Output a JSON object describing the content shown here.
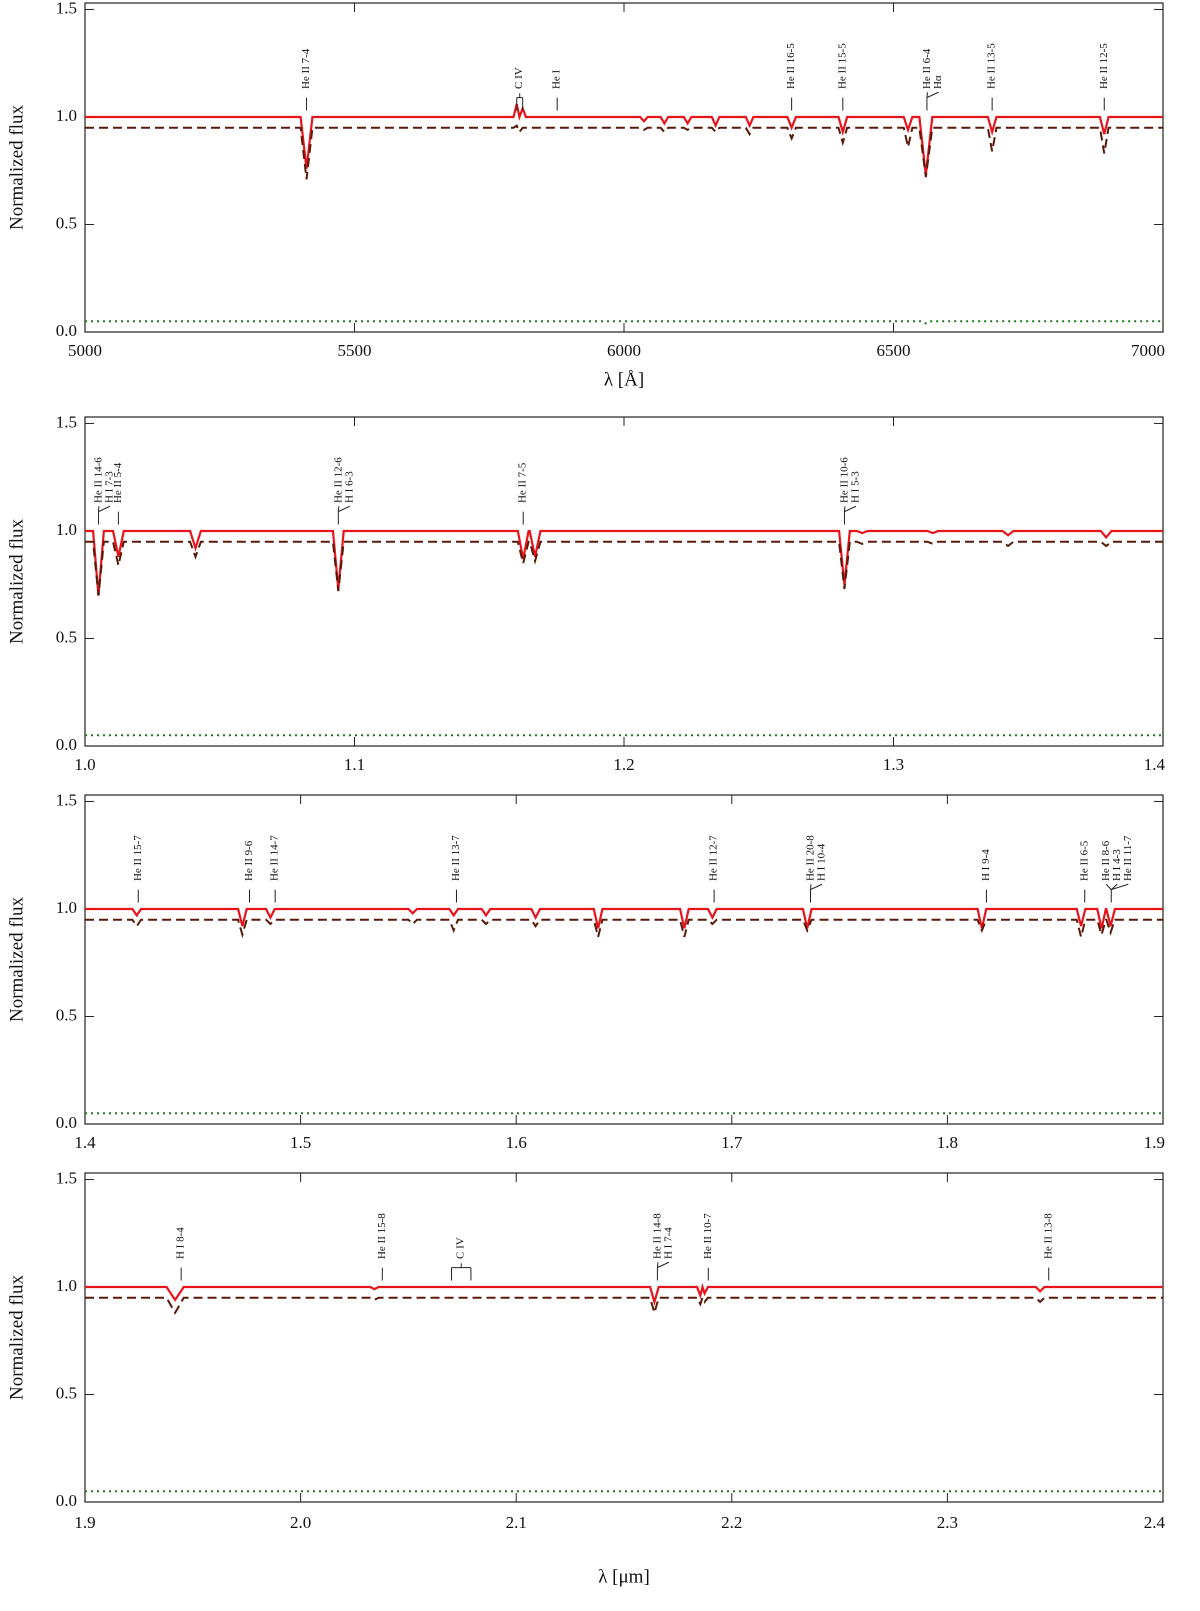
{
  "chart_data": [
    {
      "type": "line",
      "xlabel": "λ [Å]",
      "ylabel": "Normalized flux",
      "xlim": [
        5000,
        7000
      ],
      "ylim": [
        0,
        1.53
      ],
      "xticks": [
        5000,
        5500,
        6000,
        6500,
        7000
      ],
      "yticks": [
        {
          "value": 0,
          "label": "0.0"
        },
        0.5,
        {
          "value": 1,
          "label": "1.0"
        },
        1.5
      ],
      "series": [
        {
          "color": "#e8141c",
          "style": "solid",
          "x": [
            5000,
            5400,
            5411,
            5422,
            5795,
            5801,
            5806,
            5812,
            5818,
            6030,
            6037,
            6044,
            6068,
            6075,
            6082,
            6111,
            6118,
            6125,
            6163,
            6170,
            6177,
            6226,
            6233,
            6240,
            6303,
            6311,
            6319,
            6398,
            6406,
            6414,
            6519,
            6527,
            6535,
            6548,
            6560,
            6572,
            6675,
            6683,
            6691,
            6883,
            6891,
            6899,
            7000
          ],
          "values": [
            1,
            1,
            0.76,
            1,
            1,
            1.06,
            1,
            1.04,
            1,
            1,
            0.98,
            1,
            1,
            0.97,
            1,
            1,
            0.97,
            1,
            1,
            0.96,
            1,
            1,
            0.96,
            1,
            1,
            0.95,
            1,
            1,
            0.93,
            1,
            1,
            0.94,
            1,
            1,
            0.73,
            1,
            1,
            0.93,
            1,
            1,
            0.92,
            1,
            1
          ]
        },
        {
          "color": "#5a1a0a",
          "style": "dashed",
          "x": [
            5000,
            5400,
            5411,
            5422,
            5795,
            5801,
            5806,
            5812,
            5818,
            6030,
            6037,
            6044,
            6068,
            6075,
            6082,
            6111,
            6118,
            6125,
            6163,
            6170,
            6177,
            6226,
            6233,
            6240,
            6303,
            6311,
            6319,
            6398,
            6406,
            6414,
            6519,
            6527,
            6535,
            6548,
            6560,
            6572,
            6675,
            6683,
            6691,
            6883,
            6891,
            6899,
            7000
          ],
          "values": [
            0.95,
            0.95,
            0.71,
            0.95,
            0.95,
            0.96,
            0.93,
            0.95,
            0.95,
            0.95,
            0.94,
            0.95,
            0.95,
            0.93,
            0.95,
            0.95,
            0.94,
            0.95,
            0.95,
            0.93,
            0.95,
            0.95,
            0.92,
            0.95,
            0.95,
            0.9,
            0.95,
            0.95,
            0.88,
            0.95,
            0.95,
            0.86,
            0.95,
            0.95,
            0.72,
            0.95,
            0.95,
            0.84,
            0.95,
            0.95,
            0.83,
            0.95,
            0.95
          ]
        },
        {
          "color": "#1a7a1a",
          "style": "dotted",
          "x": [
            5000,
            6550,
            6560,
            6570,
            7000
          ],
          "values": [
            0.05,
            0.05,
            0.04,
            0.05,
            0.05
          ]
        }
      ],
      "annotations": [
        {
          "labels": [
            "He II 7-4"
          ],
          "x": 5411
        },
        {
          "labels": [
            "C IV"
          ],
          "x": [
            5801,
            5812
          ]
        },
        {
          "labels": [
            "He I"
          ],
          "x": 5876
        },
        {
          "labels": [
            "He II 16-5"
          ],
          "x": 6311
        },
        {
          "labels": [
            "He II 15-5"
          ],
          "x": 6406
        },
        {
          "labels": [
            "He II 6-4",
            "Hα"
          ],
          "x": 6562
        },
        {
          "labels": [
            "He II 13-5"
          ],
          "x": 6683
        },
        {
          "labels": [
            "He II 12-5"
          ],
          "x": 6891
        }
      ]
    },
    {
      "type": "line",
      "ylabel": "Normalized flux",
      "xlim": [
        1.0,
        1.4
      ],
      "ylim": [
        0,
        1.53
      ],
      "xticks": [
        {
          "value": 1,
          "label": "1.0"
        },
        1.1,
        1.2,
        1.3,
        1.4
      ],
      "yticks": [
        {
          "value": 0,
          "label": "0.0"
        },
        0.5,
        {
          "value": 1,
          "label": "1.0"
        },
        1.5
      ],
      "series": [
        {
          "color": "#e8141c",
          "style": "solid",
          "x": [
            1.0,
            1.003,
            1.005,
            1.007,
            1.0104,
            1.0124,
            1.0144,
            1.039,
            1.041,
            1.043,
            1.092,
            1.094,
            1.096,
            1.1606,
            1.1626,
            1.1646,
            1.165,
            1.167,
            1.169,
            1.2798,
            1.2818,
            1.2838,
            1.2864,
            1.2884,
            1.2904,
            1.3126,
            1.3146,
            1.3166,
            1.3405,
            1.3425,
            1.3445,
            1.3769,
            1.3789,
            1.3809,
            1.4
          ],
          "values": [
            1,
            1,
            0.7,
            1,
            1,
            0.88,
            1,
            1,
            0.92,
            1,
            1,
            0.73,
            1,
            1,
            0.87,
            1,
            1,
            0.88,
            1,
            1,
            0.75,
            1,
            1,
            0.99,
            1,
            1,
            0.99,
            1,
            1,
            0.98,
            1,
            1,
            0.97,
            1,
            1
          ]
        },
        {
          "color": "#5a1a0a",
          "style": "dashed",
          "x": [
            1.0,
            1.003,
            1.005,
            1.007,
            1.0104,
            1.0124,
            1.0144,
            1.039,
            1.041,
            1.043,
            1.092,
            1.094,
            1.096,
            1.1606,
            1.1626,
            1.1646,
            1.165,
            1.167,
            1.169,
            1.2798,
            1.2818,
            1.2838,
            1.2864,
            1.2884,
            1.2904,
            1.3126,
            1.3146,
            1.3166,
            1.3405,
            1.3425,
            1.3445,
            1.3769,
            1.3789,
            1.3809,
            1.4
          ],
          "values": [
            0.95,
            0.95,
            0.7,
            0.95,
            0.95,
            0.84,
            0.95,
            0.95,
            0.88,
            0.95,
            0.95,
            0.72,
            0.95,
            0.95,
            0.85,
            0.95,
            0.95,
            0.86,
            0.95,
            0.95,
            0.73,
            0.95,
            0.95,
            0.94,
            0.95,
            0.95,
            0.94,
            0.95,
            0.95,
            0.93,
            0.95,
            0.95,
            0.93,
            0.95,
            0.95
          ]
        },
        {
          "color": "#1a7a1a",
          "style": "dotted",
          "x": [
            1.0,
            1.4
          ],
          "values": [
            0.05,
            0.05
          ]
        }
      ],
      "annotations": [
        {
          "labels": [
            "He II 14-6",
            "H I 7-3"
          ],
          "x": 1.005
        },
        {
          "labels": [
            "He II 5-4"
          ],
          "x": 1.0124
        },
        {
          "labels": [
            "He II 12-6",
            "H I 6-3"
          ],
          "x": 1.094
        },
        {
          "labels": [
            "He II 7-5"
          ],
          "x": 1.1626
        },
        {
          "labels": [
            "He II 10-6",
            "H I 5-3"
          ],
          "x": 1.2818
        }
      ]
    },
    {
      "type": "line",
      "ylabel": "Normalized flux",
      "xlim": [
        1.4,
        1.9
      ],
      "ylim": [
        0,
        1.53
      ],
      "xticks": [
        1.4,
        1.5,
        1.6,
        1.7,
        1.8,
        1.9
      ],
      "yticks": [
        {
          "value": 0,
          "label": "0.0"
        },
        0.5,
        {
          "value": 1,
          "label": "1.0"
        },
        1.5
      ],
      "series": [
        {
          "color": "#e8141c",
          "style": "solid",
          "x": [
            1.4,
            1.422,
            1.424,
            1.426,
            1.471,
            1.473,
            1.475,
            1.484,
            1.486,
            1.488,
            1.55,
            1.552,
            1.554,
            1.569,
            1.571,
            1.573,
            1.584,
            1.586,
            1.588,
            1.607,
            1.609,
            1.611,
            1.636,
            1.638,
            1.64,
            1.676,
            1.678,
            1.68,
            1.689,
            1.691,
            1.693,
            1.733,
            1.735,
            1.737,
            1.814,
            1.816,
            1.818,
            1.86,
            1.862,
            1.864,
            1.8695,
            1.8715,
            1.8735,
            1.8737,
            1.8757,
            1.8777,
            1.9
          ],
          "values": [
            1,
            1,
            0.97,
            1,
            1,
            0.92,
            1,
            1,
            0.96,
            1,
            1,
            0.98,
            1,
            1,
            0.97,
            1,
            1,
            0.97,
            1,
            1,
            0.96,
            1,
            1,
            0.91,
            1,
            1,
            0.91,
            1,
            1,
            0.96,
            1,
            1,
            0.91,
            1,
            1,
            0.91,
            1,
            1,
            0.92,
            1,
            1,
            0.91,
            1,
            1,
            0.92,
            1,
            1
          ]
        },
        {
          "color": "#5a1a0a",
          "style": "dashed",
          "x": [
            1.4,
            1.422,
            1.424,
            1.426,
            1.471,
            1.473,
            1.475,
            1.484,
            1.486,
            1.488,
            1.55,
            1.552,
            1.554,
            1.569,
            1.571,
            1.573,
            1.584,
            1.586,
            1.588,
            1.607,
            1.609,
            1.611,
            1.636,
            1.638,
            1.64,
            1.676,
            1.678,
            1.68,
            1.689,
            1.691,
            1.693,
            1.733,
            1.735,
            1.737,
            1.814,
            1.816,
            1.818,
            1.86,
            1.862,
            1.864,
            1.8695,
            1.8715,
            1.8735,
            1.8737,
            1.8757,
            1.8777,
            1.9
          ],
          "values": [
            0.95,
            0.95,
            0.92,
            0.95,
            0.95,
            0.88,
            0.95,
            0.95,
            0.93,
            0.95,
            0.95,
            0.93,
            0.95,
            0.95,
            0.9,
            0.95,
            0.95,
            0.93,
            0.95,
            0.95,
            0.92,
            0.95,
            0.95,
            0.87,
            0.95,
            0.95,
            0.87,
            0.95,
            0.95,
            0.93,
            0.95,
            0.95,
            0.9,
            0.95,
            0.95,
            0.9,
            0.95,
            0.95,
            0.87,
            0.95,
            0.95,
            0.88,
            0.95,
            0.95,
            0.89,
            0.95,
            0.95
          ]
        },
        {
          "color": "#1a7a1a",
          "style": "dotted",
          "x": [
            1.4,
            1.9
          ],
          "values": [
            0.05,
            0.05
          ]
        }
      ],
      "annotations": [
        {
          "labels": [
            "He II 15-7"
          ],
          "x": 1.4247
        },
        {
          "labels": [
            "He II 9-6"
          ],
          "x": 1.4763
        },
        {
          "labels": [
            "He II 14-7"
          ],
          "x": 1.4882
        },
        {
          "labels": [
            "He II 13-7"
          ],
          "x": 1.5723
        },
        {
          "labels": [
            "He II 12-7"
          ],
          "x": 1.6918
        },
        {
          "labels": [
            "He II 20-8",
            "H I 10-4"
          ],
          "x": 1.7365
        },
        {
          "labels": [
            "H I 9-4"
          ],
          "x": 1.8181
        },
        {
          "labels": [
            "He II 6-5"
          ],
          "x": 1.8637
        },
        {
          "labels": [
            "He II 8-6",
            "H I 4-3",
            "He II 11-7"
          ],
          "x": 1.876
        }
      ]
    },
    {
      "type": "line",
      "xlabel": "λ [μm]",
      "ylabel": "Normalized flux",
      "xlim": [
        1.9,
        2.4
      ],
      "ylim": [
        0,
        1.53
      ],
      "xticks": [
        1.9,
        {
          "value": 2,
          "label": "2.0"
        },
        2.1,
        2.2,
        2.3,
        2.4
      ],
      "yticks": [
        {
          "value": 0,
          "label": "0.0"
        },
        0.5,
        {
          "value": 1,
          "label": "1.0"
        },
        1.5
      ],
      "series": [
        {
          "color": "#e8141c",
          "style": "solid",
          "x": [
            1.9,
            1.9378,
            1.9418,
            1.9458,
            2.0322,
            2.0342,
            2.0362,
            2.1621,
            2.1641,
            2.1661,
            2.1839,
            2.1854,
            2.1864,
            2.1874,
            2.1889,
            2.341,
            2.343,
            2.345,
            2.4
          ],
          "values": [
            1,
            1,
            0.94,
            1,
            1,
            0.99,
            1,
            1,
            0.93,
            1,
            1,
            0.96,
            1,
            0.97,
            1,
            1,
            0.98,
            1,
            1
          ]
        },
        {
          "color": "#5a1a0a",
          "style": "dashed",
          "x": [
            1.9,
            1.9378,
            1.9418,
            1.9458,
            2.0322,
            2.0342,
            2.0362,
            2.1621,
            2.1641,
            2.1661,
            2.1839,
            2.1854,
            2.1864,
            2.1874,
            2.1889,
            2.341,
            2.343,
            2.345,
            2.4
          ],
          "values": [
            0.95,
            0.95,
            0.88,
            0.95,
            0.95,
            0.94,
            0.95,
            0.95,
            0.88,
            0.95,
            0.95,
            0.92,
            0.95,
            0.93,
            0.95,
            0.95,
            0.93,
            0.95,
            0.95
          ]
        },
        {
          "color": "#1a7a1a",
          "style": "dotted",
          "x": [
            1.9,
            2.4
          ],
          "values": [
            0.05,
            0.05
          ]
        }
      ],
      "annotations": [
        {
          "labels": [
            "H I 8-4"
          ],
          "x": 1.9446
        },
        {
          "labels": [
            "He II 15-8"
          ],
          "x": 2.0379
        },
        {
          "labels": [
            "C IV"
          ],
          "x": [
            2.07,
            2.079
          ]
        },
        {
          "labels": [
            "He II 14-8",
            "H I 7-4"
          ],
          "x": 2.1655
        },
        {
          "labels": [
            "He II 10-7"
          ],
          "x": 2.1891
        },
        {
          "labels": [
            "He II 13-8"
          ],
          "x": 2.347
        }
      ]
    }
  ]
}
